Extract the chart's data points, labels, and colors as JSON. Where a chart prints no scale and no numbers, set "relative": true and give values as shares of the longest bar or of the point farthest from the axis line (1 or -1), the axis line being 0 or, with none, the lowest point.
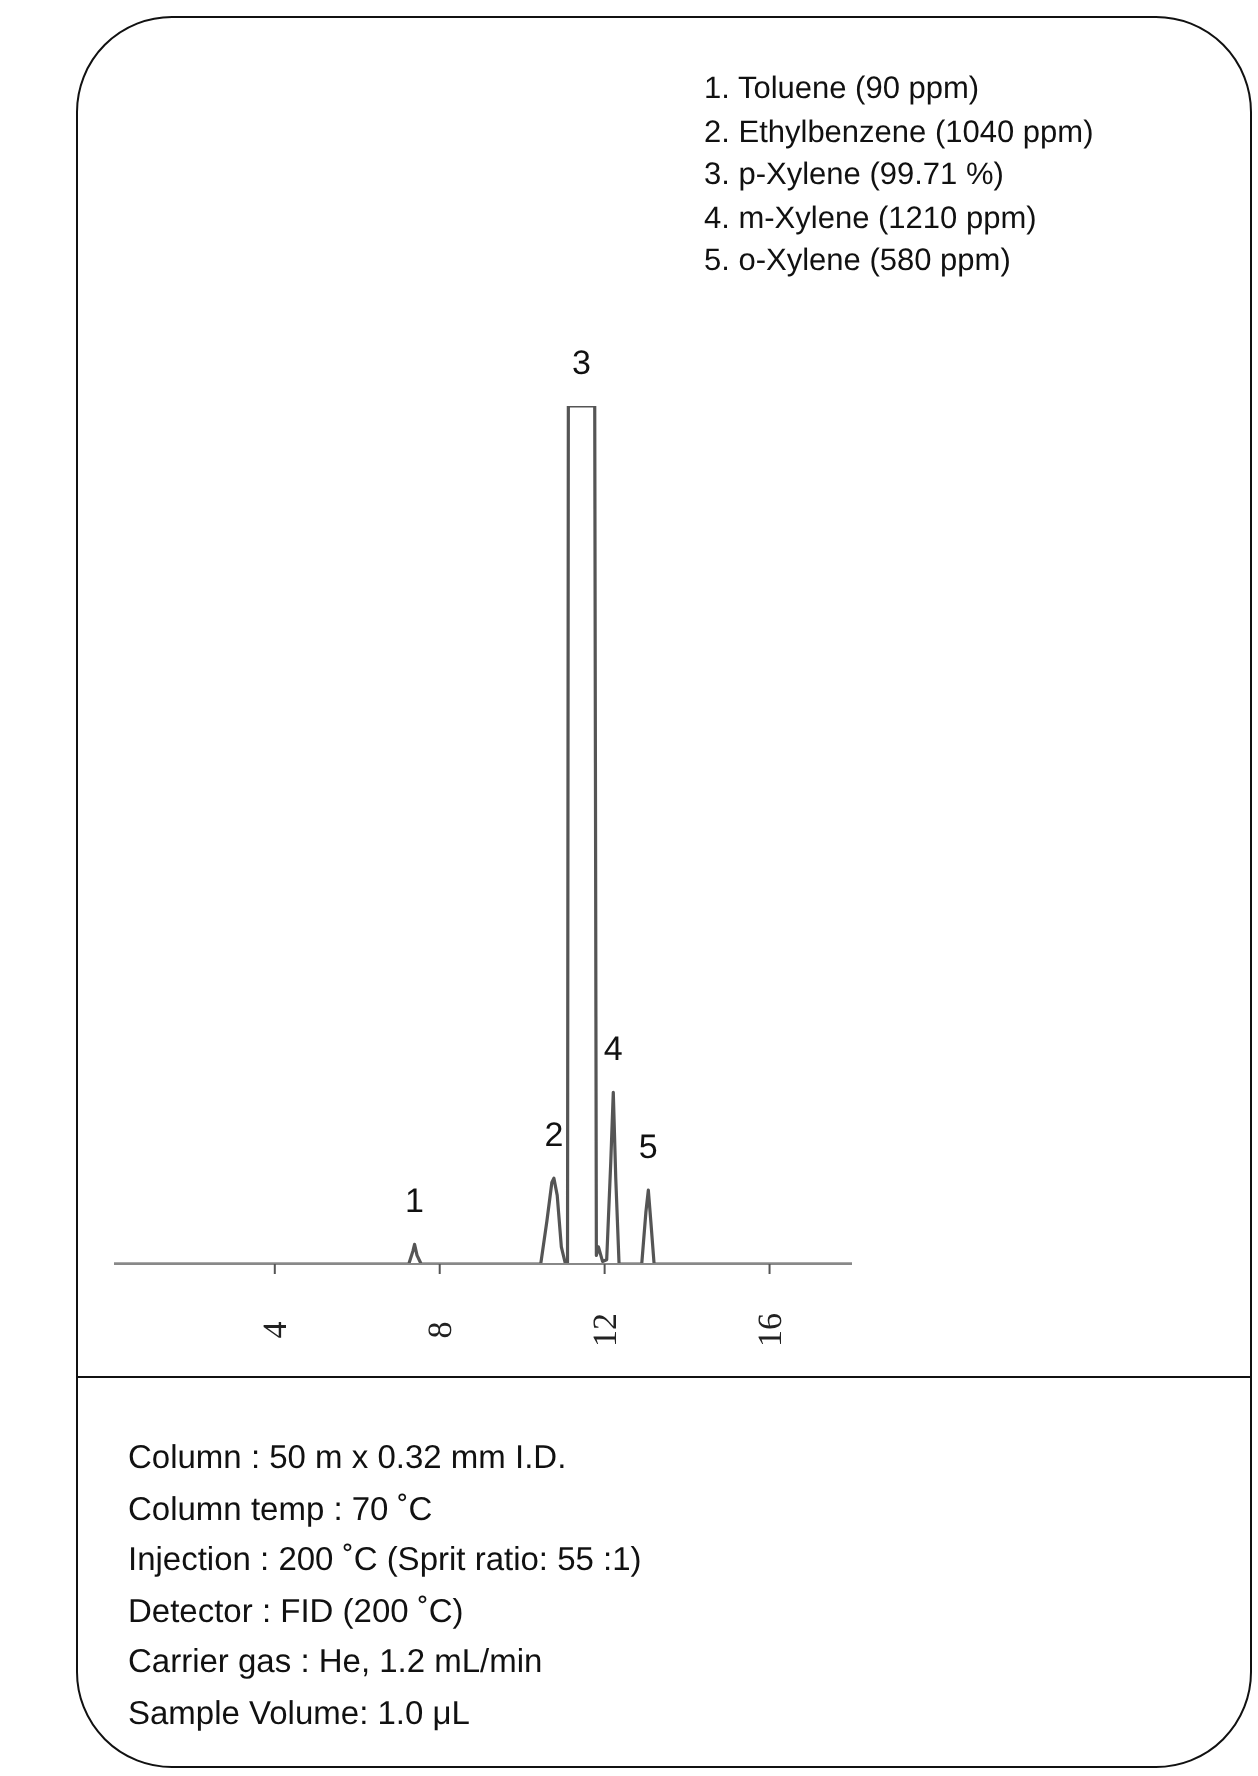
{
  "chart_data": {
    "type": "line",
    "relative": true,
    "xlim": [
      0.1,
      18
    ],
    "xticks": [
      4,
      8,
      12,
      16
    ],
    "grid": false,
    "legend": false,
    "marker": "none",
    "line_style": "solid",
    "series": [
      {
        "color": "#555555",
        "x": [
          0.1,
          4,
          7.25,
          7.35,
          7.39,
          7.45,
          7.55,
          10.45,
          10.6,
          10.72,
          10.77,
          10.85,
          10.95,
          11.05,
          11.1,
          11.12,
          11.76,
          11.8,
          11.85,
          11.95,
          12.05,
          12.15,
          12.21,
          12.27,
          12.35,
          12.9,
          13.0,
          13.06,
          13.12,
          13.2,
          18
        ],
        "values": [
          0,
          0,
          0,
          0.015,
          0.023,
          0.01,
          0,
          0,
          0.05,
          0.095,
          0.1,
          0.08,
          0.02,
          0,
          0,
          1,
          1,
          0.01,
          0.02,
          0.003,
          0.005,
          0.12,
          0.2,
          0.1,
          0,
          0,
          0.06,
          0.086,
          0.05,
          0,
          0
        ]
      }
    ],
    "annotations": [
      {
        "text": "1",
        "x": 7.39,
        "y": 0.023
      },
      {
        "text": "2",
        "x": 10.77,
        "y": 0.1
      },
      {
        "text": "3",
        "x": 11.44,
        "y": 1
      },
      {
        "text": "4",
        "x": 12.21,
        "y": 0.2
      },
      {
        "text": "5",
        "x": 13.06,
        "y": 0.086
      },
      "1. Toluene (90 ppm)",
      "2. Ethylbenzene (1040 ppm)",
      "3. p-Xylene (99.71 %)",
      "4. m-Xylene (1210 ppm)",
      "5. o-Xylene (580 ppm)",
      "Column : 50 m x 0.32 mm I.D.",
      "Column temp : 70 ˚C",
      "Injection : 200 ˚C (Sprit ratio: 55 :1)",
      "Detector : FID (200 ˚C)",
      "Carrier gas : He, 1.2 mL/min",
      "Sample Volume: 1.0 μL"
    ]
  }
}
